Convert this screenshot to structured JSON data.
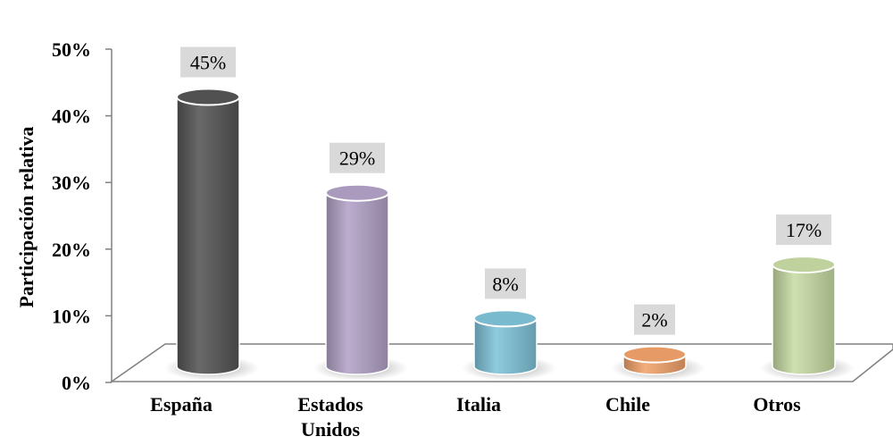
{
  "chart_data": {
    "type": "bar",
    "style": "3d-cylinder",
    "categories": [
      "España",
      "Estados Unidos",
      "Italia",
      "Chile",
      "Otros"
    ],
    "category_lines": [
      [
        "España"
      ],
      [
        "Estados",
        "Unidos"
      ],
      [
        "Italia"
      ],
      [
        "Chile"
      ],
      [
        "Otros"
      ]
    ],
    "values": [
      45,
      29,
      8,
      2,
      17
    ],
    "data_labels": [
      "45%",
      "29%",
      "8%",
      "2%",
      "17%"
    ],
    "colors": [
      "#555555",
      "#b3a2c7",
      "#7fc4d9",
      "#f2a36b",
      "#c9dca5"
    ],
    "ylabel": "Participación relativa",
    "yticks": [
      "0%",
      "10%",
      "20%",
      "30%",
      "40%",
      "50%"
    ],
    "ylim": [
      0,
      50
    ],
    "grid": false,
    "legend": "none"
  }
}
